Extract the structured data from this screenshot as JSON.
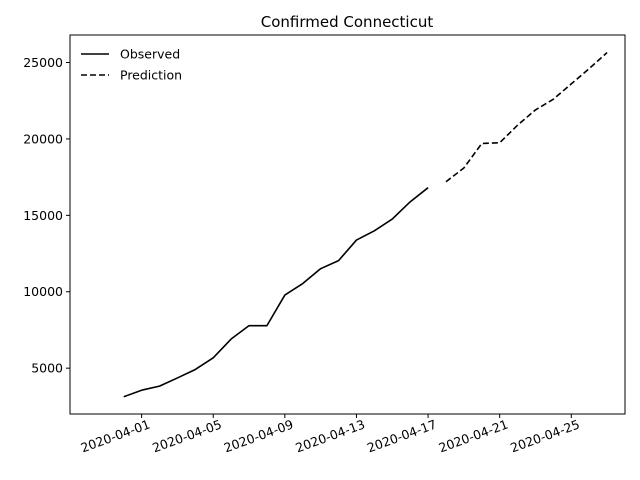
{
  "chart_data": {
    "type": "line",
    "title": "Confirmed Connecticut",
    "xlabel": "",
    "ylabel": "",
    "x_tick_labels": [
      "2020-04-01",
      "2020-04-05",
      "2020-04-09",
      "2020-04-13",
      "2020-04-17",
      "2020-04-21",
      "2020-04-25"
    ],
    "y_ticks": [
      5000,
      10000,
      15000,
      20000,
      25000
    ],
    "xlim": [
      "2020-03-28",
      "2020-04-28"
    ],
    "ylim": [
      2000,
      26800
    ],
    "grid": false,
    "legend_position": "top-left",
    "series": [
      {
        "name": "Observed",
        "style": "solid",
        "color": "#000000",
        "points": [
          {
            "x": "2020-03-31",
            "y": 3128
          },
          {
            "x": "2020-04-01",
            "y": 3557
          },
          {
            "x": "2020-04-02",
            "y": 3824
          },
          {
            "x": "2020-04-03",
            "y": 4359
          },
          {
            "x": "2020-04-04",
            "y": 4914
          },
          {
            "x": "2020-04-05",
            "y": 5675
          },
          {
            "x": "2020-04-06",
            "y": 6906
          },
          {
            "x": "2020-04-07",
            "y": 7781
          },
          {
            "x": "2020-04-08",
            "y": 7781
          },
          {
            "x": "2020-04-09",
            "y": 9784
          },
          {
            "x": "2020-04-10",
            "y": 10538
          },
          {
            "x": "2020-04-11",
            "y": 11510
          },
          {
            "x": "2020-04-12",
            "y": 12035
          },
          {
            "x": "2020-04-13",
            "y": 13381
          },
          {
            "x": "2020-04-14",
            "y": 13989
          },
          {
            "x": "2020-04-15",
            "y": 14755
          },
          {
            "x": "2020-04-16",
            "y": 15884
          },
          {
            "x": "2020-04-17",
            "y": 16809
          }
        ]
      },
      {
        "name": "Prediction",
        "style": "dashed",
        "color": "#000000",
        "points": [
          {
            "x": "2020-04-18",
            "y": 17200
          },
          {
            "x": "2020-04-19",
            "y": 18100
          },
          {
            "x": "2020-04-20",
            "y": 19700
          },
          {
            "x": "2020-04-21",
            "y": 19750
          },
          {
            "x": "2020-04-22",
            "y": 20900
          },
          {
            "x": "2020-04-23",
            "y": 21900
          },
          {
            "x": "2020-04-24",
            "y": 22600
          },
          {
            "x": "2020-04-25",
            "y": 23600
          },
          {
            "x": "2020-04-26",
            "y": 24600
          },
          {
            "x": "2020-04-27",
            "y": 25650
          }
        ]
      }
    ]
  }
}
